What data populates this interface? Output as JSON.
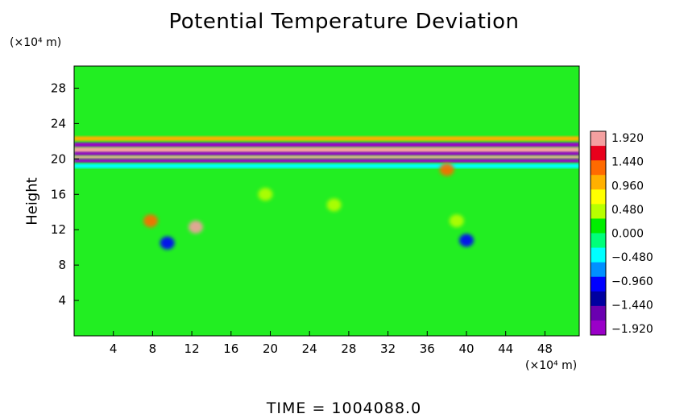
{
  "chart_data": {
    "type": "heatmap",
    "title": "Potential Temperature Deviation",
    "ylabel": "Height",
    "xlabel": "",
    "y_unit": "(×10⁴ m)",
    "x_unit": "(×10⁴ m)",
    "xlim": [
      0,
      51.5
    ],
    "ylim": [
      0,
      30.5
    ],
    "xticks": [
      4,
      8,
      12,
      16,
      20,
      24,
      28,
      32,
      36,
      40,
      44,
      48
    ],
    "yticks": [
      4,
      8,
      12,
      16,
      20,
      24,
      28
    ],
    "colorbar": {
      "labels": [
        "1.920",
        "1.440",
        "0.960",
        "0.480",
        "0.000",
        "−0.480",
        "−0.960",
        "−1.440",
        "−1.920"
      ],
      "colors": [
        "#f4a0a0",
        "#e8001c",
        "#ff6a00",
        "#ffb000",
        "#ffff00",
        "#b8ff00",
        "#00ee00",
        "#00ff7a",
        "#00ffff",
        "#0090ff",
        "#0000ff",
        "#0000a0",
        "#6a00b0",
        "#9a00c8"
      ]
    },
    "background_color": "#22ee22",
    "features": [
      {
        "type": "band",
        "x_range": [
          0,
          51.5
        ],
        "y_center": 21.6,
        "thickness": 0.5,
        "value": -1.92
      },
      {
        "type": "band",
        "x_range": [
          0,
          51.5
        ],
        "y_center": 21.0,
        "thickness": 0.6,
        "value": 1.92
      },
      {
        "type": "band",
        "x_range": [
          0,
          51.5
        ],
        "y_center": 20.6,
        "thickness": 0.4,
        "value": -1.92
      },
      {
        "type": "band",
        "x_range": [
          0,
          51.5
        ],
        "y_center": 20.2,
        "thickness": 0.3,
        "value": 1.92
      },
      {
        "type": "band",
        "x_range": [
          0,
          51.5
        ],
        "y_center": 19.8,
        "thickness": 0.4,
        "value": -1.92
      },
      {
        "type": "band",
        "x_range": [
          0,
          51.5
        ],
        "y_center": 22.3,
        "thickness": 0.5,
        "value": 0.96
      },
      {
        "type": "band",
        "x_range": [
          0,
          51.5
        ],
        "y_center": 19.2,
        "thickness": 0.5,
        "value": -0.48
      },
      {
        "type": "blob",
        "x": 12.4,
        "y": 12.3,
        "value": 1.92
      },
      {
        "type": "blob",
        "x": 7.8,
        "y": 13.0,
        "value": 1.44
      },
      {
        "type": "blob",
        "x": 9.5,
        "y": 10.5,
        "value": -0.96
      },
      {
        "type": "blob",
        "x": 40.0,
        "y": 10.8,
        "value": -0.96
      },
      {
        "type": "blob",
        "x": 38.0,
        "y": 18.8,
        "value": 1.44
      },
      {
        "type": "blob",
        "x": 26.5,
        "y": 14.8,
        "value": 0.48
      },
      {
        "type": "blob",
        "x": 19.5,
        "y": 16.0,
        "value": 0.48
      },
      {
        "type": "blob",
        "x": 39.0,
        "y": 13.0,
        "value": 0.48
      }
    ]
  },
  "footer": {
    "time_label": "TIME  =  1004088.0"
  }
}
